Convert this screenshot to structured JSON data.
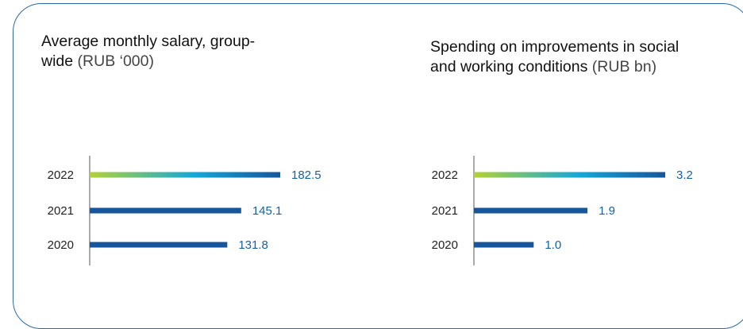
{
  "colors": {
    "bar": "#16569c",
    "value_text": "#1560a8",
    "border": "#2a6aa7",
    "gradient_start": "#b3d233",
    "gradient_mid": "#14a8d8",
    "gradient_end": "#16569c"
  },
  "chart_data": [
    {
      "type": "bar",
      "orientation": "horizontal",
      "title_main": "Average monthly salary, group-wide",
      "title_unit": "(RUB ‘000)",
      "categories": [
        "2022",
        "2021",
        "2020"
      ],
      "values": [
        182.5,
        145.1,
        131.8
      ],
      "value_labels": [
        "182.5",
        "145.1",
        "131.8"
      ],
      "xlim": [
        0,
        182.5
      ],
      "highlight_category": "2022"
    },
    {
      "type": "bar",
      "orientation": "horizontal",
      "title_main": "Spending on improvements in social and working conditions",
      "title_unit": "(RUB bn)",
      "categories": [
        "2022",
        "2021",
        "2020"
      ],
      "values": [
        3.2,
        1.9,
        1.0
      ],
      "value_labels": [
        "3.2",
        "1.9",
        "1.0"
      ],
      "xlim": [
        0,
        3.2
      ],
      "highlight_category": "2022"
    }
  ]
}
